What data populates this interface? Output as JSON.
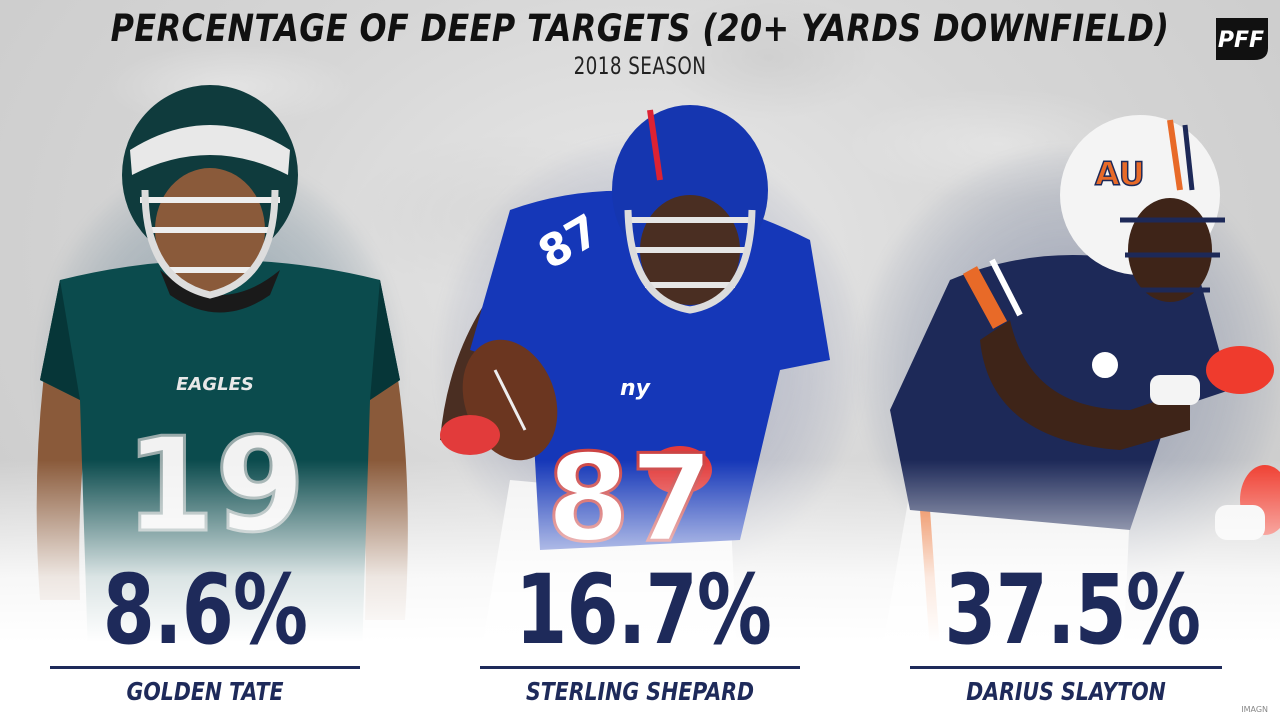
{
  "header": {
    "title": "PERCENTAGE OF DEEP TARGETS (20+ YARDS DOWNFIELD)",
    "subtitle": "2018 SEASON"
  },
  "logo": {
    "text": "PFF",
    "icon": "pff-logo-icon"
  },
  "players": [
    {
      "name": "GOLDEN TATE",
      "percentage": "8.6%",
      "jersey_number": "19",
      "team_wordmark": "EAGLES",
      "jersey_color": "#0b4b4d"
    },
    {
      "name": "STERLING SHEPARD",
      "percentage": "16.7%",
      "jersey_number": "87",
      "team_wordmark": "ny",
      "jersey_color": "#1537b8"
    },
    {
      "name": "DARIUS SLAYTON",
      "percentage": "37.5%",
      "jersey_number": "",
      "team_wordmark": "AU",
      "jersey_color": "#1d2958"
    }
  ],
  "credit": "IMAGN",
  "colors": {
    "accent": "#1e2a5a",
    "title": "#111111"
  }
}
